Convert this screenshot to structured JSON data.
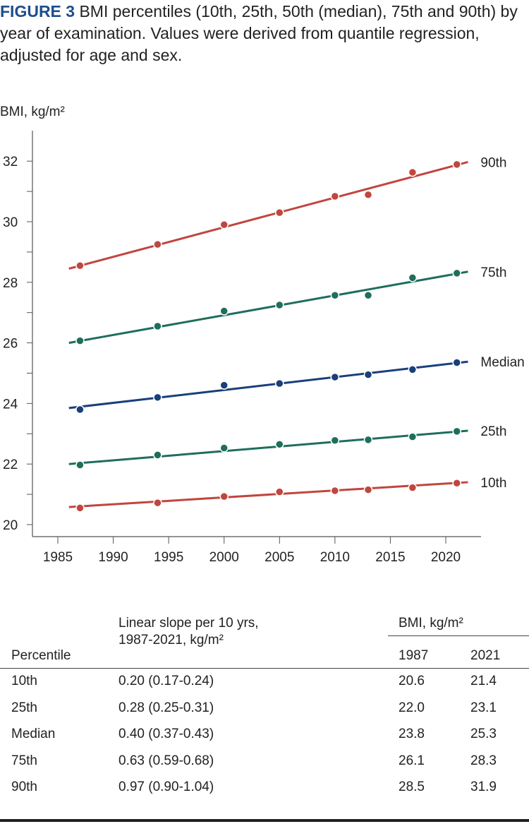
{
  "caption": {
    "label": "FIGURE 3",
    "text": " BMI percentiles (10th, 25th, 50th (median), 75th and 90th) by year of examination. Values were derived from quantile regression, adjusted for age and sex."
  },
  "chart_data": {
    "type": "scatter",
    "ylabel": "BMI, kg/m²",
    "xlim": [
      1983,
      2024
    ],
    "ylim": [
      19.6,
      33
    ],
    "xticks": [
      1985,
      1990,
      1995,
      2000,
      2005,
      2010,
      2015,
      2020
    ],
    "yticks": [
      20,
      22,
      24,
      26,
      28,
      30,
      32
    ],
    "x": [
      1987,
      1994,
      2000,
      2005,
      2010,
      2013,
      2017,
      2021
    ],
    "series": [
      {
        "name": "90th",
        "color": "#c0463f",
        "values": [
          28.55,
          29.25,
          29.9,
          30.3,
          30.84,
          30.89,
          31.63,
          31.89
        ],
        "fit": [
          [
            1986,
            28.45
          ],
          [
            2022,
            31.97
          ]
        ]
      },
      {
        "name": "75th",
        "color": "#1f6e5c",
        "values": [
          26.07,
          26.55,
          27.05,
          27.25,
          27.57,
          27.57,
          28.15,
          28.3
        ],
        "fit": [
          [
            1986,
            26.0
          ],
          [
            2022,
            28.35
          ]
        ]
      },
      {
        "name": "Median",
        "color": "#1a3f7a",
        "values": [
          23.8,
          24.2,
          24.6,
          24.66,
          24.87,
          24.95,
          25.12,
          25.35
        ],
        "fit": [
          [
            1986,
            23.85
          ],
          [
            2022,
            25.38
          ]
        ]
      },
      {
        "name": "25th",
        "color": "#1f6e5c",
        "values": [
          21.97,
          22.3,
          22.53,
          22.65,
          22.78,
          22.8,
          22.9,
          23.08
        ],
        "fit": [
          [
            1986,
            22.0
          ],
          [
            2022,
            23.1
          ]
        ]
      },
      {
        "name": "10th",
        "color": "#c0463f",
        "values": [
          20.55,
          20.72,
          20.93,
          21.08,
          21.12,
          21.15,
          21.22,
          21.37
        ],
        "fit": [
          [
            1986,
            20.58
          ],
          [
            2022,
            21.4
          ]
        ]
      }
    ]
  },
  "table": {
    "headers": {
      "percentile": "Percentile",
      "slope_line1": "Linear slope per 10 yrs,",
      "slope_line2": "1987-2021, kg/m²",
      "bmi": "BMI, kg/m²",
      "y1": "1987",
      "y2": "2021"
    },
    "rows": [
      [
        "10th",
        "0.20 (0.17-0.24)",
        "20.6",
        "21.4"
      ],
      [
        "25th",
        "0.28 (0.25-0.31)",
        "22.0",
        "23.1"
      ],
      [
        "Median",
        "0.40 (0.37-0.43)",
        "23.8",
        "25.3"
      ],
      [
        "75th",
        "0.63 (0.59-0.68)",
        "26.1",
        "28.3"
      ],
      [
        "90th",
        "0.97 (0.90-1.04)",
        "28.5",
        "31.9"
      ]
    ]
  }
}
